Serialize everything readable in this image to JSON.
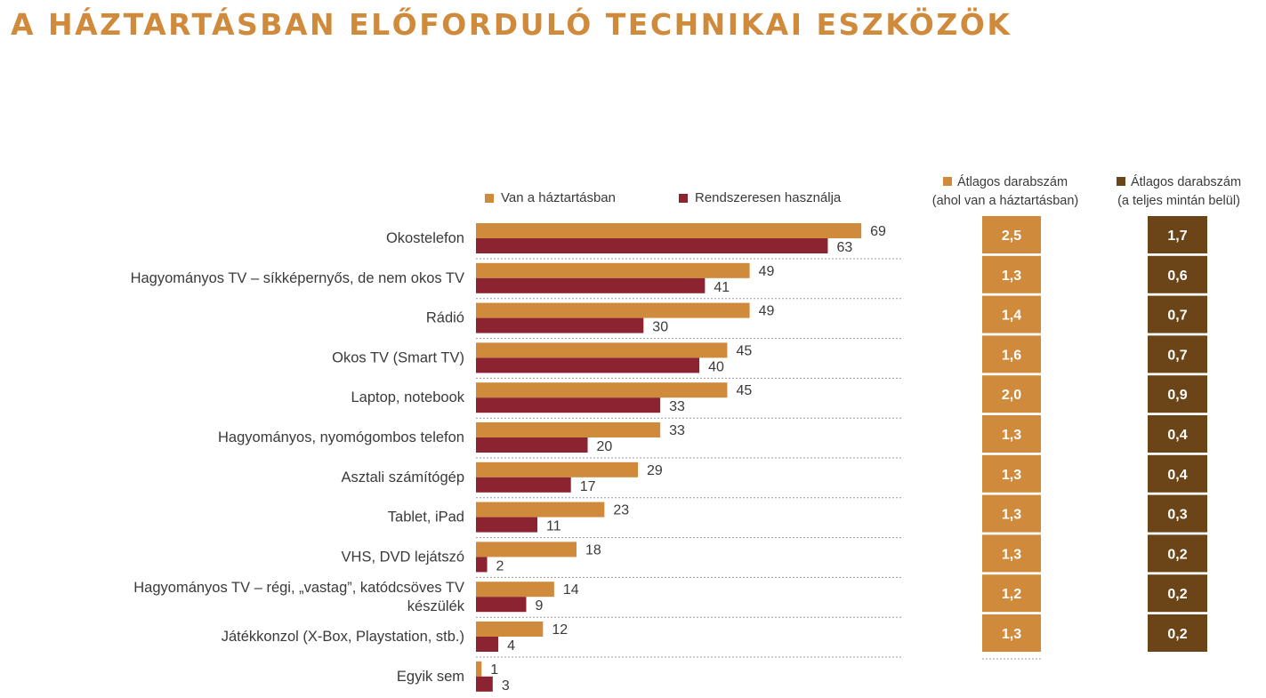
{
  "title": "A HÁZTARTÁSBAN ELŐFORDULÓ TECHNIKAI ESZKÖZÖK",
  "colors": {
    "title": "#d08a3c",
    "van": "#d08a3c",
    "rendszeresen": "#8b2430",
    "avg_household": "#d08a3c",
    "avg_total": "#6b4417"
  },
  "legend": {
    "van": "Van a háztartásban",
    "rendszeresen": "Rendszeresen használja"
  },
  "columns": {
    "avg_household_line1": "Átlagos darabszám",
    "avg_household_line2": "(ahol van a háztartásban)",
    "avg_total_line1": "Átlagos darabszám",
    "avg_total_line2": "(a teljes mintán belül)"
  },
  "chart_data": {
    "type": "bar",
    "orientation": "horizontal",
    "categories": [
      "Okostelefon",
      "Hagyományos TV – síkképernyős, de nem okos TV",
      "Rádió",
      "Okos TV (Smart TV)",
      "Laptop, notebook",
      "Hagyományos, nyomógombos telefon",
      "Asztali számítógép",
      "Tablet, iPad",
      "VHS, DVD lejátszó",
      "Hagyományos TV – régi, „vastag”, katódcsöves TV készülék",
      "Játékkonzol (X-Box, Playstation, stb.)",
      "Egyik sem"
    ],
    "series": [
      {
        "name": "Van a háztartásban",
        "values": [
          69,
          49,
          49,
          45,
          45,
          33,
          29,
          23,
          18,
          14,
          12,
          1
        ]
      },
      {
        "name": "Rendszeresen használja",
        "values": [
          63,
          41,
          30,
          40,
          33,
          20,
          17,
          11,
          2,
          9,
          4,
          3
        ]
      }
    ],
    "side_columns": [
      {
        "name": "Átlagos darabszám (ahol van a háztartásban)",
        "values": [
          "2,5",
          "1,3",
          "1,4",
          "1,6",
          "2,0",
          "1,3",
          "1,3",
          "1,3",
          "1,3",
          "1,2",
          "1,3"
        ]
      },
      {
        "name": "Átlagos darabszám (a teljes mintán belül)",
        "values": [
          "1,7",
          "0,6",
          "0,7",
          "0,7",
          "0,9",
          "0,4",
          "0,4",
          "0,3",
          "0,2",
          "0,2",
          "0,2"
        ]
      }
    ],
    "legend_position": "top",
    "grid": false
  }
}
